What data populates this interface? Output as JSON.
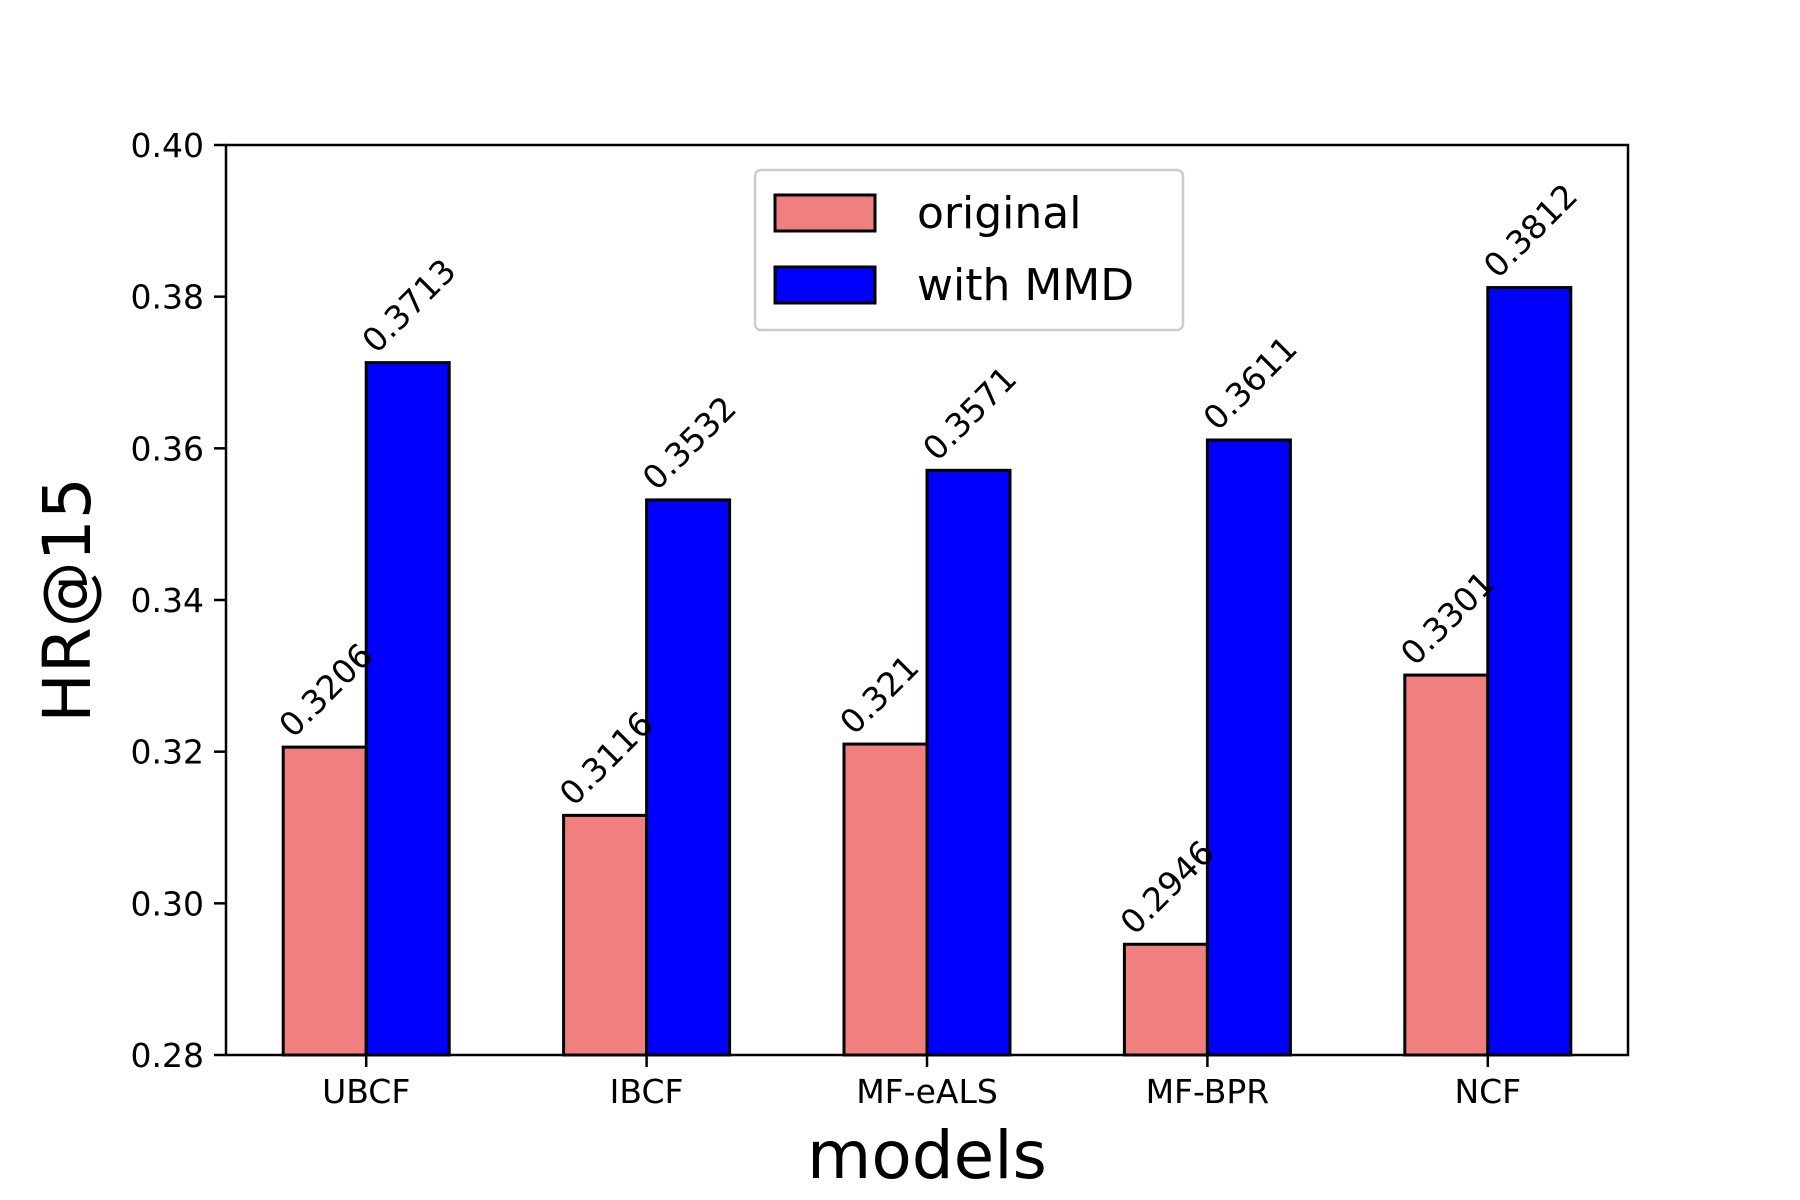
{
  "chart_data": {
    "type": "bar",
    "xlabel": "models",
    "ylabel": "HR@15",
    "ylim": [
      0.28,
      0.4
    ],
    "yticks": [
      0.28,
      0.3,
      0.32,
      0.34,
      0.36,
      0.38,
      0.4
    ],
    "ytick_labels": [
      "0.28",
      "0.30",
      "0.32",
      "0.34",
      "0.36",
      "0.38",
      "0.40"
    ],
    "categories": [
      "UBCF",
      "IBCF",
      "MF-eALS",
      "MF-BPR",
      "NCF"
    ],
    "series": [
      {
        "name": "original",
        "color": "#F08080",
        "values": [
          0.3206,
          0.3116,
          0.321,
          0.2946,
          0.3301
        ],
        "labels": [
          "0.3206",
          "0.3116",
          "0.321",
          "0.2946",
          "0.3301"
        ]
      },
      {
        "name": "with MMD",
        "color": "#0000FF",
        "values": [
          0.3713,
          0.3532,
          0.3571,
          0.3611,
          0.3812
        ],
        "labels": [
          "0.3713",
          "0.3532",
          "0.3571",
          "0.3611",
          "0.3812"
        ]
      }
    ],
    "legend": "upper-center",
    "grid": false
  }
}
